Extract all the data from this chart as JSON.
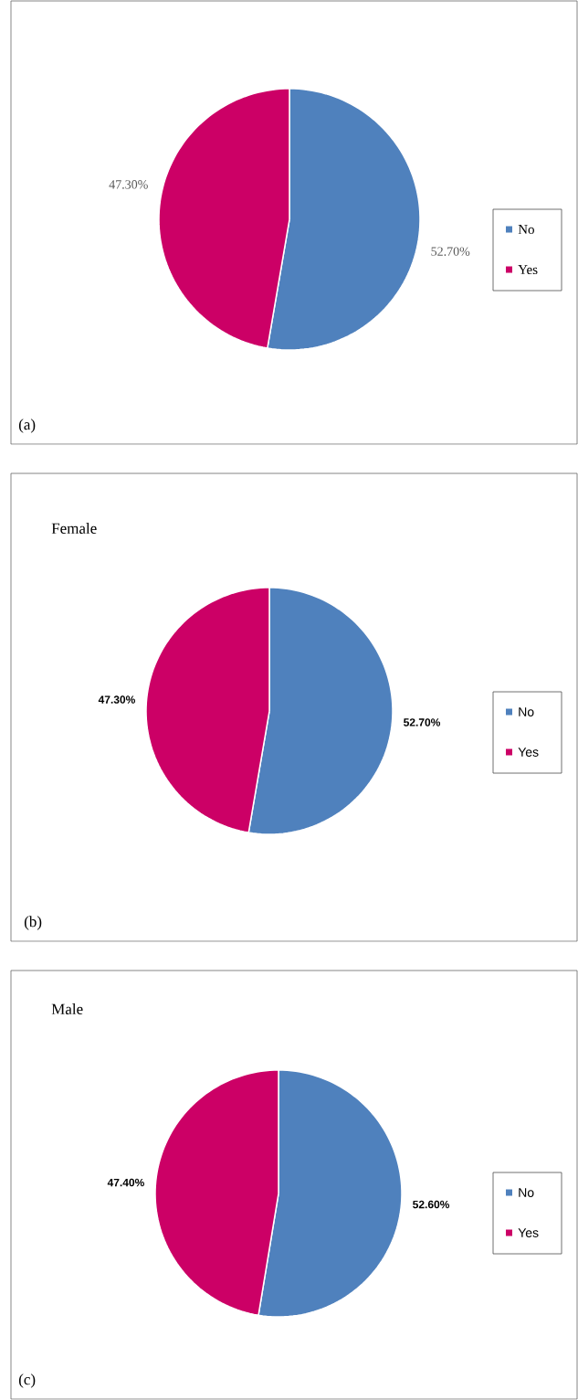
{
  "chart_data": [
    {
      "type": "pie",
      "categories": [
        "No",
        "Yes"
      ],
      "values": [
        52.7,
        47.3
      ],
      "colors": [
        "#4f81bd",
        "#cc0066"
      ],
      "value_labels": [
        "52.70%",
        "47.30%"
      ],
      "legend": "right",
      "annotations": [
        "(a)"
      ]
    },
    {
      "type": "pie",
      "title": "Female",
      "categories": [
        "No",
        "Yes"
      ],
      "values": [
        52.7,
        47.3
      ],
      "colors": [
        "#4f81bd",
        "#cc0066"
      ],
      "value_labels": [
        "52.70%",
        "47.30%"
      ],
      "legend": "right",
      "annotations": [
        "(b)"
      ]
    },
    {
      "type": "pie",
      "title": "Male",
      "categories": [
        "No",
        "Yes"
      ],
      "values": [
        52.6,
        47.4
      ],
      "colors": [
        "#4f81bd",
        "#cc0066"
      ],
      "value_labels": [
        "52.60%",
        "47.40%"
      ],
      "legend": "right",
      "annotations": [
        "(c)"
      ]
    }
  ]
}
